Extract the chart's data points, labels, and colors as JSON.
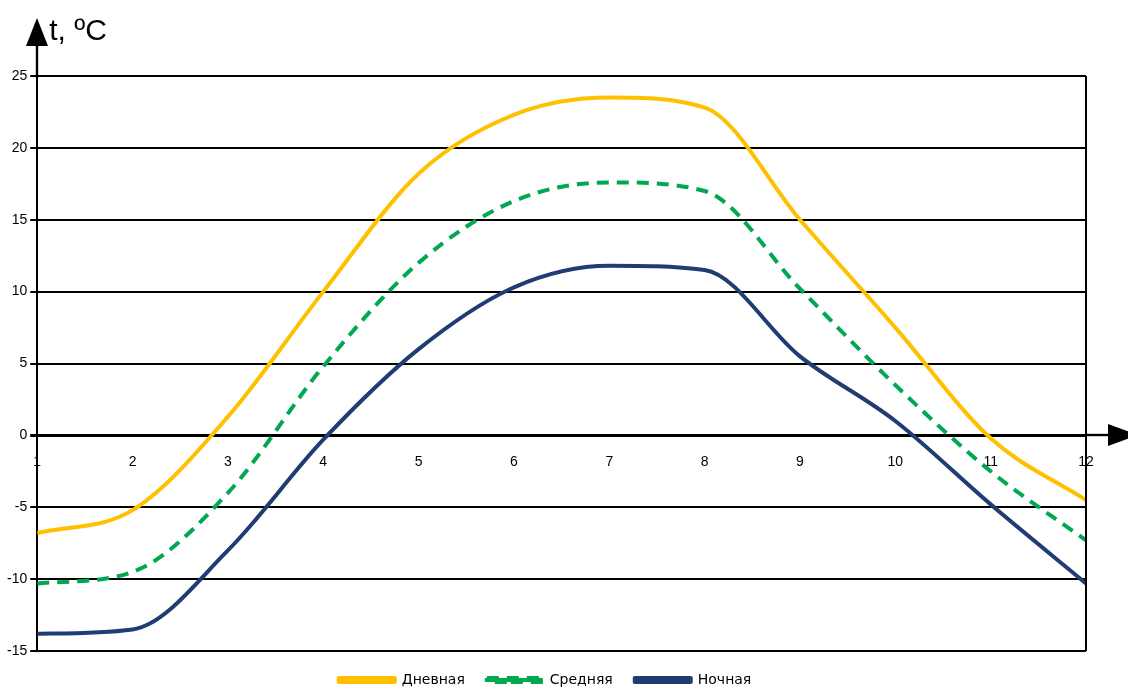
{
  "chart_data": {
    "type": "line",
    "ylabel": "t, ºC",
    "x": [
      1,
      2,
      3,
      4,
      5,
      6,
      7,
      8,
      9,
      10,
      11,
      12
    ],
    "xlim": [
      1,
      12
    ],
    "xticks": [
      1,
      2,
      3,
      4,
      5,
      6,
      7,
      8,
      9,
      10,
      11,
      12
    ],
    "ylim": [
      -15,
      25
    ],
    "yticks": [
      -15,
      -10,
      -5,
      0,
      5,
      10,
      15,
      20,
      25
    ],
    "grid": "y",
    "legend": "bottom",
    "marker": "none",
    "series": [
      {
        "name": "Дневная",
        "color": "#ffc000",
        "line_style": "solid",
        "values": [
          -6.8,
          -5.2,
          1.3,
          10,
          18.2,
          22.3,
          23.5,
          22.8,
          15,
          7.5,
          -0.2,
          -4.5
        ]
      },
      {
        "name": "Средняя",
        "color": "#00a84f",
        "line_style": "dashed",
        "values": [
          -10.3,
          -9.5,
          -4,
          4.8,
          12,
          16.3,
          17.6,
          17,
          10.2,
          3.5,
          -2.5,
          -7.3
        ]
      },
      {
        "name": "Ночная",
        "color": "#1f3c73",
        "line_style": "solid",
        "values": [
          -13.8,
          -13.5,
          -8,
          -0.3,
          6,
          10.3,
          11.8,
          11.5,
          5.5,
          1,
          -4.8,
          -10.3
        ]
      }
    ]
  }
}
